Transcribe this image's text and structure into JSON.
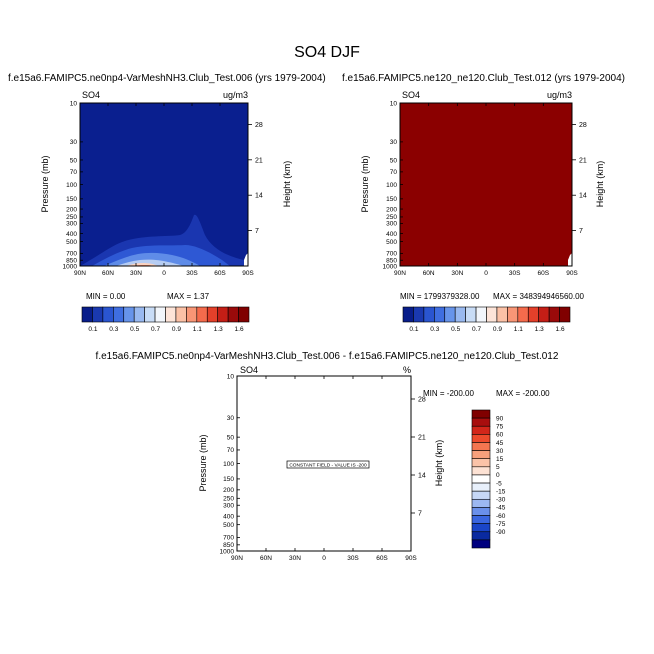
{
  "figure": {
    "title": "SO4 DJF"
  },
  "colors": {
    "levels": [
      "#081d8a",
      "#1a39b0",
      "#2a55d0",
      "#3f6ee0",
      "#6794ea",
      "#99b9f0",
      "#c8dcf6",
      "#f2f6fb",
      "#fde4d8",
      "#fbc1a6",
      "#f89676",
      "#f46b4c",
      "#e4402a",
      "#c41e16",
      "#9a0a0a",
      "#800000"
    ],
    "diff_levels": [
      "#00007f",
      "#0a2aa0",
      "#1a45c8",
      "#3a66df",
      "#6a90ea",
      "#9cb8f2",
      "#c6d8f7",
      "#e8f0fb",
      "#ffffff",
      "#fde2d4",
      "#fbc3a8",
      "#f8a07c",
      "#f47650",
      "#ec4a2c",
      "#d2261a",
      "#a80e0e",
      "#800000"
    ]
  },
  "chart_data": [
    {
      "type": "heatmap",
      "title": "f.e15a6.FAMIPC5.ne0np4-VarMeshNH3.Club_Test.006 (yrs 1979-2004)",
      "variable": "SO4",
      "units": "ug/m3",
      "ylabel": "Pressure (mb)",
      "y2label": "Height (km)",
      "x_ticks": [
        "90N",
        "60N",
        "30N",
        "0",
        "30S",
        "60S",
        "90S"
      ],
      "y_ticks": [
        "10",
        "30",
        "50",
        "70",
        "100",
        "150",
        "200",
        "250",
        "300",
        "400",
        "500",
        "700",
        "850",
        "1000"
      ],
      "y2_ticks": [
        "28",
        "21",
        "14",
        "7"
      ],
      "min_label": "MIN =   0.00",
      "max_label": "MAX =   1.37",
      "min": 0.0,
      "max": 1.37,
      "colorbar_labels": [
        "0.1",
        "0.3",
        "0.5",
        "0.7",
        "0.9",
        "1.1",
        "1.3",
        "1.6"
      ]
    },
    {
      "type": "heatmap",
      "title": "f.e15a6.FAMIPC5.ne120_ne120.Club_Test.012 (yrs 1979-2004)",
      "variable": "SO4",
      "units": "ug/m3",
      "ylabel": "Pressure (mb)",
      "y2label": "Height (km)",
      "x_ticks": [
        "90N",
        "60N",
        "30N",
        "0",
        "30S",
        "60S",
        "90S"
      ],
      "y_ticks": [
        "10",
        "30",
        "50",
        "70",
        "100",
        "150",
        "200",
        "250",
        "300",
        "400",
        "500",
        "700",
        "850",
        "1000"
      ],
      "y2_ticks": [
        "28",
        "21",
        "14",
        "7"
      ],
      "min_label": "MIN = 1799379328.00",
      "max_label": "MAX = 348394946560.00",
      "min": 1799379328.0,
      "max": 348394946560.0,
      "colorbar_labels": [
        "0.1",
        "0.3",
        "0.5",
        "0.7",
        "0.9",
        "1.1",
        "1.3",
        "1.6"
      ]
    },
    {
      "type": "heatmap",
      "title": "f.e15a6.FAMIPC5.ne0np4-VarMeshNH3.Club_Test.006 - f.e15a6.FAMIPC5.ne120_ne120.Club_Test.012",
      "variable": "SO4",
      "units": "%",
      "ylabel": "Pressure (mb)",
      "y2label": "Height (km)",
      "x_ticks": [
        "90N",
        "60N",
        "30N",
        "0",
        "30S",
        "60S",
        "90S"
      ],
      "y_ticks": [
        "10",
        "30",
        "50",
        "70",
        "100",
        "150",
        "200",
        "250",
        "300",
        "400",
        "500",
        "700",
        "850",
        "1000"
      ],
      "y2_ticks": [
        "28",
        "21",
        "14",
        "7"
      ],
      "min_label": "MIN = -200.00",
      "max_label": "MAX = -200.00",
      "min": -200.0,
      "max": -200.0,
      "note": "CONSTANT FIELD - VALUE IS -200",
      "colorbar_labels": [
        "90",
        "75",
        "60",
        "45",
        "30",
        "15",
        "5",
        "0",
        "-5",
        "-15",
        "-30",
        "-45",
        "-60",
        "-75",
        "-90"
      ]
    }
  ]
}
